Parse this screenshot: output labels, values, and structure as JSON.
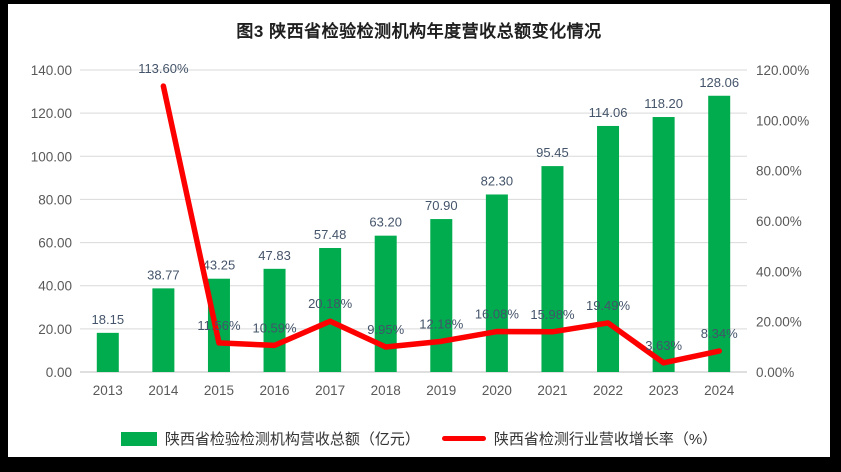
{
  "title": "图3  陕西省检验检测机构年度营收总额变化情况",
  "colors": {
    "bar": "#00AC4E",
    "line": "#FE0000",
    "grid": "#D9D9D9",
    "axis_line": "#BFBFBF",
    "tick_text": "#595959",
    "data_label_text": "#44546A",
    "title_text": "#1F1F1F",
    "frame": "#000000",
    "background": "#FFFFFF"
  },
  "legend": {
    "items": [
      {
        "label": "陕西省检验检测机构营收总额（亿元）",
        "swatch": "bar"
      },
      {
        "label": "陕西省检测行业营收增长率（%）",
        "swatch": "line"
      }
    ]
  },
  "chart_data": {
    "type": "bar+line",
    "title": "图3  陕西省检验检测机构年度营收总额变化情况",
    "categories": [
      "2013",
      "2014",
      "2015",
      "2016",
      "2017",
      "2018",
      "2019",
      "2020",
      "2021",
      "2022",
      "2023",
      "2024"
    ],
    "series": [
      {
        "name": "陕西省检验检测机构营收总额（亿元）",
        "type": "bar",
        "axis": "left",
        "color": "#00AC4E",
        "values": [
          18.15,
          38.77,
          43.25,
          47.83,
          57.48,
          63.2,
          70.9,
          82.3,
          95.45,
          114.06,
          118.2,
          128.06
        ],
        "labels": [
          "18.15",
          "38.77",
          "43.25",
          "47.83",
          "57.48",
          "63.20",
          "70.90",
          "82.30",
          "95.45",
          "114.06",
          "118.20",
          "128.06"
        ]
      },
      {
        "name": "陕西省检测行业营收增长率（%）",
        "type": "line",
        "axis": "right",
        "color": "#FE0000",
        "values": [
          null,
          113.6,
          11.56,
          10.59,
          20.18,
          9.95,
          12.18,
          16.08,
          15.98,
          19.49,
          3.63,
          8.34
        ],
        "labels": [
          null,
          "113.60%",
          "11.56%",
          "10.59%",
          "20.18%",
          "9.95%",
          "12.18%",
          "16.08%",
          "15.98%",
          "19.49%",
          "3.63%",
          "8.34%"
        ]
      }
    ],
    "left_axis": {
      "min": 0,
      "max": 140,
      "step": 20,
      "tick_labels": [
        "0.00",
        "20.00",
        "40.00",
        "60.00",
        "80.00",
        "100.00",
        "120.00",
        "140.00"
      ]
    },
    "right_axis": {
      "min": 0,
      "max": 120,
      "step": 20,
      "tick_labels": [
        "0.00%",
        "20.00%",
        "40.00%",
        "60.00%",
        "80.00%",
        "100.00%",
        "120.00%"
      ]
    },
    "grid": true,
    "legend_position": "bottom"
  }
}
